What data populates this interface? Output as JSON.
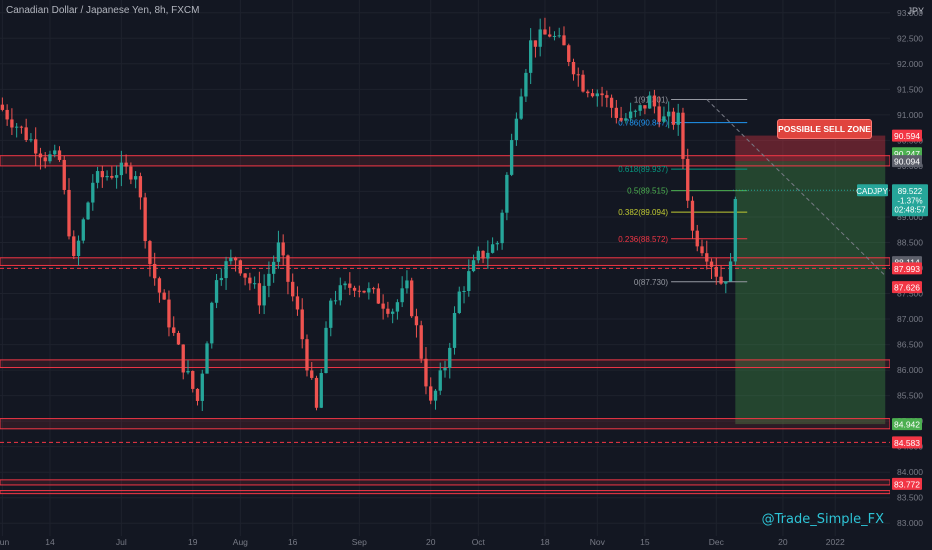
{
  "header": {
    "title": "Canadian Dollar / Japanese Yen, 8h, FXCM",
    "currency": "JPY"
  },
  "watermark": "@Trade_Simple_FX",
  "annotation": "POSSIBLE SELL ZONE",
  "colors": {
    "background": "#131722",
    "up": "#26a69a",
    "down": "#ef5350",
    "zone": "#f23645",
    "fib_0": "#9598a1",
    "fib_0236": "#f23645",
    "fib_0382": "#c0ca33",
    "fib_05": "#4caf50",
    "fib_0618": "#089981",
    "fib_0786": "#2196f3",
    "fib_1": "#9598a1",
    "target": "#4caf50",
    "price_tag": "#26a69a"
  },
  "chart_data": {
    "type": "candlestick",
    "symbol": "CADJPY",
    "ylim": [
      82.75,
      93.25
    ],
    "y_ticks": [
      "83.000",
      "83.500",
      "84.000",
      "84.500",
      "85.000",
      "85.500",
      "86.000",
      "86.500",
      "87.000",
      "87.500",
      "88.000",
      "88.500",
      "89.000",
      "89.500",
      "90.000",
      "90.500",
      "91.000",
      "91.500",
      "92.000",
      "92.500",
      "93.000"
    ],
    "x_ticks": [
      {
        "label": "Jun",
        "pos": 0.5
      },
      {
        "label": "14",
        "pos": 10.5
      },
      {
        "label": "Jul",
        "pos": 25.5
      },
      {
        "label": "19",
        "pos": 40.5
      },
      {
        "label": "Aug",
        "pos": 50.5
      },
      {
        "label": "16",
        "pos": 61.5
      },
      {
        "label": "Sep",
        "pos": 75.5
      },
      {
        "label": "20",
        "pos": 90.5
      },
      {
        "label": "Oct",
        "pos": 100.5
      },
      {
        "label": "18",
        "pos": 114.5
      },
      {
        "label": "Nov",
        "pos": 125.5
      },
      {
        "label": "15",
        "pos": 135.5
      },
      {
        "label": "Dec",
        "pos": 150.5
      },
      {
        "label": "20",
        "pos": 164.5
      },
      {
        "label": "2022",
        "pos": 175.5
      }
    ],
    "x_range": [
      0,
      187
    ],
    "path": [
      [
        0,
        91.1
      ],
      [
        4,
        90.7
      ],
      [
        9,
        90.2
      ],
      [
        12,
        90.1
      ],
      [
        15,
        88.1
      ],
      [
        19,
        89.7
      ],
      [
        24,
        89.9
      ],
      [
        28,
        89.9
      ],
      [
        31,
        88.1
      ],
      [
        38,
        86.1
      ],
      [
        41,
        85.4
      ],
      [
        45,
        87.9
      ],
      [
        49,
        88.2
      ],
      [
        54,
        87.4
      ],
      [
        58,
        88.4
      ],
      [
        62,
        87.1
      ],
      [
        66,
        85.2
      ],
      [
        69,
        87.4
      ],
      [
        74,
        87.7
      ],
      [
        79,
        87.4
      ],
      [
        82,
        87.2
      ],
      [
        85,
        87.6
      ],
      [
        87,
        86.8
      ],
      [
        90,
        85.3
      ],
      [
        93,
        86.1
      ],
      [
        96,
        87.5
      ],
      [
        100,
        88.2
      ],
      [
        104,
        88.5
      ],
      [
        108,
        91.1
      ],
      [
        111,
        92.4
      ],
      [
        115,
        92.6
      ],
      [
        118,
        92.3
      ],
      [
        122,
        91.6
      ],
      [
        126,
        91.4
      ],
      [
        130,
        90.9
      ],
      [
        133,
        91.0
      ],
      [
        136,
        91.3
      ],
      [
        139,
        90.9
      ],
      [
        142,
        90.9
      ],
      [
        145,
        88.7
      ],
      [
        148,
        88.3
      ],
      [
        151,
        87.73
      ],
      [
        153,
        88.0
      ],
      [
        154,
        89.52
      ]
    ],
    "sr_zones": [
      [
        90.0,
        90.2
      ],
      [
        88.05,
        88.2
      ],
      [
        86.05,
        86.2
      ],
      [
        84.85,
        85.05
      ],
      [
        83.75,
        83.85
      ],
      [
        83.58,
        83.64
      ]
    ],
    "dashed_lines": [
      87.993,
      84.583
    ],
    "fibonacci": [
      {
        "label": "1(91.301)",
        "level": "1",
        "value": 91.301
      },
      {
        "label": "0.786(90.847)",
        "level": "0.786",
        "value": 90.847
      },
      {
        "label": "0.618(89.937)",
        "level": "0.618",
        "value": 89.937
      },
      {
        "label": "0.5(89.515)",
        "level": "0.5",
        "value": 89.515
      },
      {
        "label": "0.382(89.094)",
        "level": "0.382",
        "value": 89.094
      },
      {
        "label": "0.236(88.572)",
        "level": "0.236",
        "value": 88.572
      },
      {
        "label": "0(87.730)",
        "level": "0",
        "value": 87.73
      }
    ],
    "position": {
      "entry": 90.094,
      "stop": 90.594,
      "target": 84.942,
      "x_start": 154.5,
      "x_end": 186
    },
    "trendline": {
      "from": [
        148.5,
        91.301
      ],
      "to": [
        186,
        87.85
      ]
    },
    "price_tags": [
      {
        "value": "90.594",
        "price": 90.594,
        "color": "#f23645"
      },
      {
        "value": "90.247",
        "price": 90.247,
        "color": "#4caf50"
      },
      {
        "value": "90.094",
        "price": 90.094,
        "color": "#5d606b"
      },
      {
        "value": "88.114",
        "price": 88.114,
        "color": "#5d606b"
      },
      {
        "value": "87.993",
        "price": 87.993,
        "color": "#f23645"
      },
      {
        "value": "87.626",
        "price": 87.626,
        "color": "#f23645"
      },
      {
        "value": "84.942",
        "price": 84.942,
        "color": "#4caf50"
      },
      {
        "value": "84.583",
        "price": 84.583,
        "color": "#f23645"
      },
      {
        "value": "83.772",
        "price": 83.772,
        "color": "#f23645"
      }
    ],
    "current_price": {
      "symbol": "CADJPY",
      "price": 89.522,
      "value": "89.522",
      "change": "-1.37%",
      "countdown": "02:48:57"
    }
  }
}
